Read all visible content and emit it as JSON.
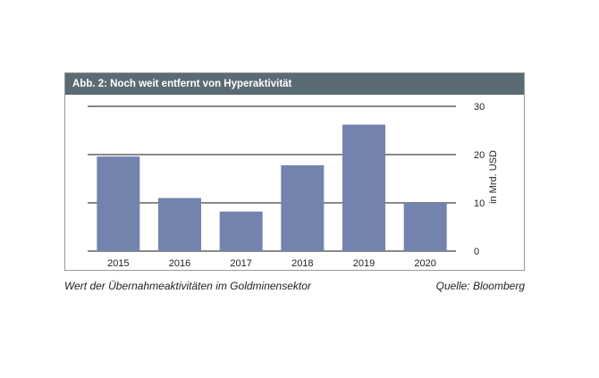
{
  "header": {
    "title": "Abb. 2: Noch weit entfernt von Hyperaktivität"
  },
  "captions": {
    "left": "Wert der Übernahmeaktivitäten im Goldminensektor",
    "right": "Quelle: Bloomberg"
  },
  "chart_data": {
    "type": "bar",
    "title": "Abb. 2: Noch weit entfernt von Hyperaktivität",
    "categories": [
      "2015",
      "2016",
      "2017",
      "2018",
      "2019",
      "2020"
    ],
    "values": [
      19.6,
      11.0,
      8.2,
      17.8,
      26.2,
      10.0
    ],
    "xlabel": "",
    "ylabel": "in Mrd. USD",
    "ylim": [
      0,
      30
    ],
    "yticks": [
      "0",
      "10",
      "20",
      "30"
    ],
    "y_axis_side": "right",
    "grid": true,
    "bar_color": "#7383ae",
    "legend": "none"
  }
}
